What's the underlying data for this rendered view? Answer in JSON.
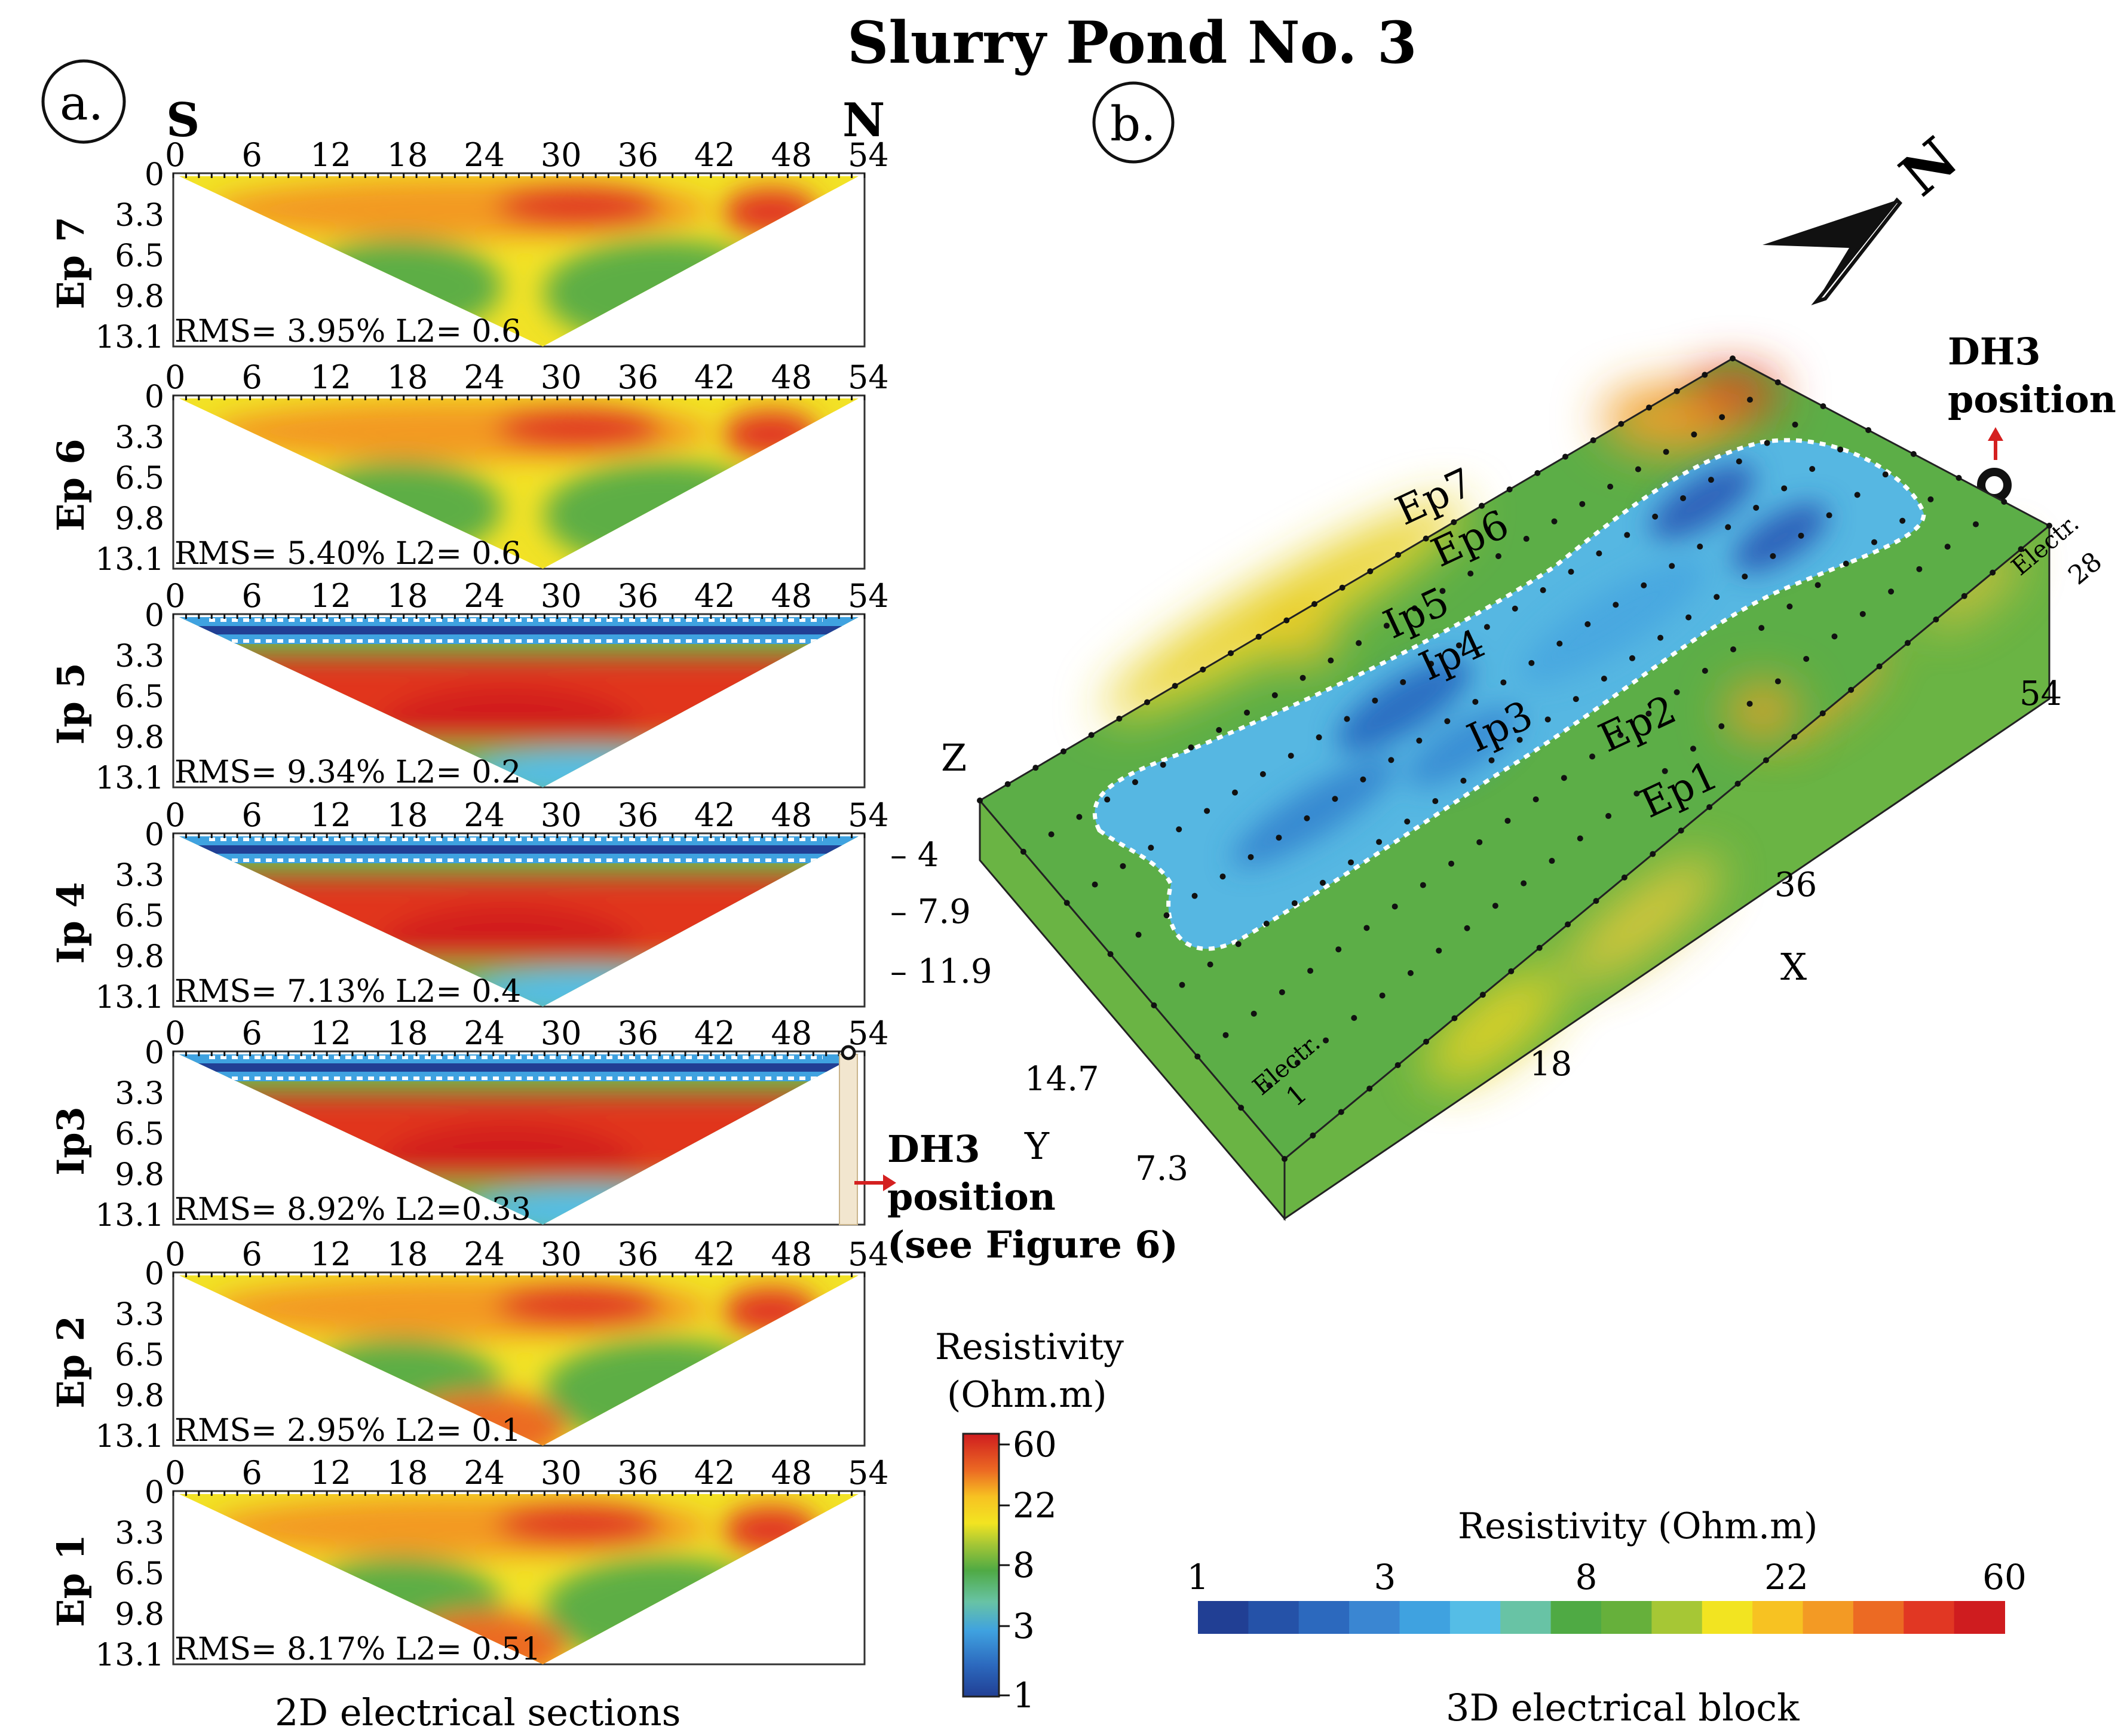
{
  "title": "Slurry Pond No. 3",
  "panel_a": {
    "label": "a.",
    "south_label": "S",
    "north_label": "N",
    "caption": "2D electrical sections",
    "x_ticks": [
      "0",
      "6",
      "12",
      "18",
      "24",
      "30",
      "36",
      "42",
      "48",
      "54"
    ],
    "depth_ticks": [
      "0",
      "3.3",
      "6.5",
      "9.8",
      "13.1"
    ],
    "sections": [
      {
        "name": "Ep 7",
        "stats": "RMS= 3.95% L2= 0.6",
        "kind": "ep"
      },
      {
        "name": "Ep 6",
        "stats": "RMS= 5.40%  L2= 0.6",
        "kind": "ep"
      },
      {
        "name": "Ip 5",
        "stats": "RMS= 9.34% L2= 0.2",
        "kind": "ip"
      },
      {
        "name": "Ip 4",
        "stats": "RMS= 7.13%  L2= 0.4",
        "kind": "ip"
      },
      {
        "name": "Ip3",
        "stats": "RMS= 8.92% L2=0.33",
        "kind": "ip"
      },
      {
        "name": "Ep 2",
        "stats": "RMS= 2.95% L2= 0.1",
        "kind": "ep"
      },
      {
        "name": "Ep 1",
        "stats": "RMS= 8.17%  L2= 0.51",
        "kind": "ep"
      }
    ],
    "dh3_note": [
      "DH3",
      "position",
      "(see Figure 6)"
    ]
  },
  "legend_vertical": {
    "title": [
      "Resistivity",
      "(Ohm.m)"
    ],
    "ticks": [
      "60",
      "22",
      "8",
      "3",
      "1"
    ]
  },
  "panel_b": {
    "label": "b.",
    "caption": "3D electrical block",
    "north_letter": "N",
    "dh3": [
      "DH3",
      "position"
    ],
    "profile_labels": [
      "Ep7",
      "Ep6",
      "Ip5",
      "Ip4",
      "Ip3",
      "Ep2",
      "Ep1"
    ],
    "z_label": "Z",
    "z_ticks": [
      "– 4",
      "– 7.9",
      "– 11.9"
    ],
    "y_label": "Y",
    "y_ticks": [
      "14.7",
      "7.3"
    ],
    "x_label": "X",
    "x_ticks": [
      "18",
      "36",
      "54"
    ],
    "electrode_start": [
      "Electr.",
      "1"
    ],
    "electrode_end": [
      "Electr.",
      "28"
    ]
  },
  "legend_horizontal": {
    "title": "Resistivity (Ohm.m)",
    "ticks": [
      "1",
      "3",
      "8",
      "22",
      "60"
    ]
  },
  "colors": {
    "scale": [
      "#213f94",
      "#2552a8",
      "#2c69be",
      "#3a86d2",
      "#3fa2e0",
      "#55bde6",
      "#68c3a5",
      "#4faa44",
      "#66b03b",
      "#a6c735",
      "#f2e421",
      "#f7c222",
      "#f39a24",
      "#ec6a23",
      "#e13723",
      "#cf1c1f"
    ]
  }
}
